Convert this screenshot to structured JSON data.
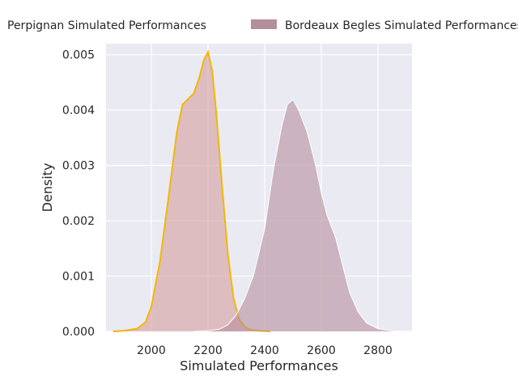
{
  "chart_data": {
    "type": "area",
    "title": "",
    "xlabel": "Simulated Performances",
    "ylabel": "Density",
    "xlim": [
      1840,
      2920
    ],
    "ylim": [
      0,
      0.0052
    ],
    "grid": true,
    "legend_position": "top",
    "x_ticks": [
      2000,
      2200,
      2400,
      2600,
      2800
    ],
    "x_tick_labels": [
      "2000",
      "2200",
      "2400",
      "2600",
      "2800"
    ],
    "y_ticks": [
      0,
      0.001,
      0.002,
      0.003,
      0.004,
      0.005
    ],
    "y_tick_labels": [
      "0.000",
      "0.001",
      "0.002",
      "0.003",
      "0.004",
      "0.005"
    ],
    "series": [
      {
        "name": "Perpignan Simulated Performances",
        "fill_color": "#d59f9f",
        "line_color": "#f2b705",
        "x": [
          1865,
          1900,
          1950,
          1980,
          2000,
          2030,
          2060,
          2090,
          2110,
          2130,
          2150,
          2170,
          2185,
          2200,
          2215,
          2230,
          2250,
          2270,
          2290,
          2310,
          2330,
          2350,
          2380,
          2420
        ],
        "y": [
          0.0,
          1e-05,
          5e-05,
          0.00017,
          0.00045,
          0.00125,
          0.0024,
          0.0036,
          0.0041,
          0.0042,
          0.0043,
          0.0046,
          0.0049,
          0.00505,
          0.0047,
          0.0039,
          0.0026,
          0.0014,
          0.0006,
          0.00022,
          8e-05,
          3e-05,
          1e-05,
          0.0
        ]
      },
      {
        "name": "Bordeaux Begles Simulated Performances",
        "fill_color": "#b58e9c",
        "line_color": "#ffffff",
        "x": [
          2150,
          2200,
          2240,
          2270,
          2300,
          2330,
          2360,
          2400,
          2430,
          2460,
          2480,
          2500,
          2520,
          2550,
          2580,
          2600,
          2620,
          2650,
          2680,
          2700,
          2730,
          2760,
          2800,
          2850,
          2900
        ],
        "y": [
          0.0,
          1e-05,
          4e-05,
          0.00012,
          0.0003,
          0.0006,
          0.001,
          0.00185,
          0.0029,
          0.0037,
          0.0041,
          0.00419,
          0.004,
          0.0036,
          0.003,
          0.0025,
          0.0021,
          0.0017,
          0.0011,
          0.0007,
          0.00035,
          0.00015,
          5e-05,
          1e-05,
          0.0
        ]
      }
    ]
  }
}
